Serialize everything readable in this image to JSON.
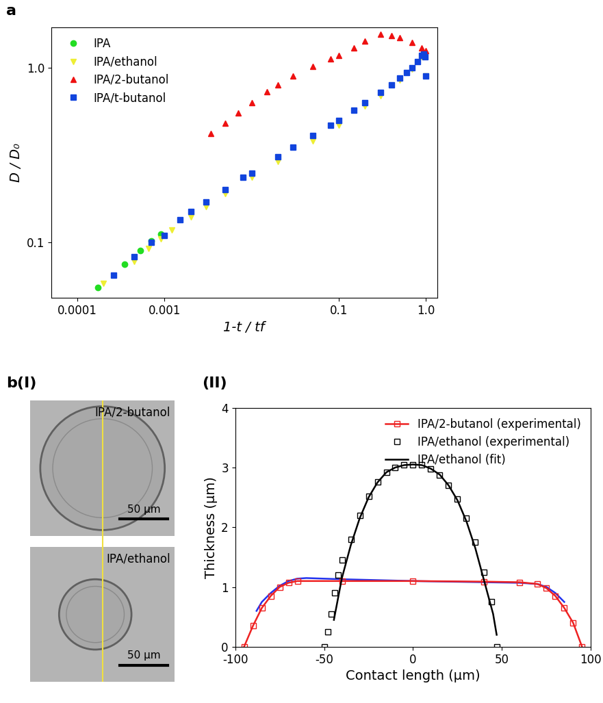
{
  "chart_data": [
    {
      "type": "scatter",
      "title": "a",
      "x_label": "1-t / tf",
      "y_label": "D / D₀",
      "log": true,
      "legend": "upper left",
      "xlim": [
        5e-05,
        1.35
      ],
      "ylim": [
        0.048,
        1.7
      ],
      "xticks": [
        0.0001,
        0.001,
        0.1,
        {
          "value": 1,
          "label": "1.0"
        }
      ],
      "yticks": [
        0.1,
        {
          "value": 1,
          "label": "1.0"
        }
      ],
      "series": [
        {
          "name": "IPA",
          "color": "#22dd22",
          "marker": "circle",
          "x": [
            0.00017,
            0.00035,
            0.00053,
            0.0007,
            0.0009
          ],
          "values": [
            0.055,
            0.075,
            0.09,
            0.102,
            0.112
          ]
        },
        {
          "name": "IPA/ethanol",
          "color": "#eeee33",
          "marker": "triangle_down",
          "x": [
            0.0002,
            0.00045,
            0.00065,
            0.0009,
            0.0012,
            0.002,
            0.003,
            0.005,
            0.01,
            0.02,
            0.05,
            0.1,
            0.2,
            0.3,
            0.5,
            0.7,
            0.9,
            0.95,
            1.0
          ],
          "values": [
            0.058,
            0.078,
            0.092,
            0.105,
            0.118,
            0.14,
            0.16,
            0.19,
            0.235,
            0.29,
            0.38,
            0.47,
            0.6,
            0.69,
            0.85,
            0.98,
            1.15,
            1.2,
            0.9
          ]
        },
        {
          "name": "IPA/2-butanol",
          "color": "#ee1111",
          "marker": "triangle_up",
          "x": [
            0.0034,
            0.005,
            0.007,
            0.01,
            0.015,
            0.02,
            0.03,
            0.05,
            0.08,
            0.1,
            0.15,
            0.2,
            0.3,
            0.4,
            0.5,
            0.7,
            0.9,
            1.0
          ],
          "values": [
            0.42,
            0.48,
            0.55,
            0.63,
            0.73,
            0.8,
            0.9,
            1.02,
            1.12,
            1.17,
            1.3,
            1.42,
            1.55,
            1.52,
            1.48,
            1.4,
            1.3,
            1.25
          ]
        },
        {
          "name": "IPA/t-butanol",
          "color": "#1144dd",
          "marker": "square",
          "x": [
            0.00026,
            0.00045,
            0.0007,
            0.001,
            0.0015,
            0.002,
            0.003,
            0.005,
            0.008,
            0.01,
            0.02,
            0.03,
            0.05,
            0.08,
            0.1,
            0.15,
            0.2,
            0.3,
            0.4,
            0.5,
            0.6,
            0.7,
            0.8,
            0.9,
            0.95,
            0.98,
            1.0
          ],
          "values": [
            0.065,
            0.083,
            0.1,
            0.11,
            0.135,
            0.15,
            0.17,
            0.2,
            0.235,
            0.25,
            0.31,
            0.35,
            0.41,
            0.47,
            0.5,
            0.57,
            0.63,
            0.72,
            0.8,
            0.87,
            0.94,
            1.0,
            1.08,
            1.17,
            1.2,
            1.15,
            0.9
          ]
        }
      ]
    },
    {
      "type": "image",
      "title": "b(I)",
      "panels": [
        {
          "label": "IPA/2-butanol",
          "scale_bar": "50 µm"
        },
        {
          "label": "IPA/ethanol",
          "scale_bar": "50 µm"
        }
      ]
    },
    {
      "type": "line",
      "title": "(II)",
      "x_label": "Contact length (µm)",
      "y_label": "Thickness (µm)",
      "legend": "upper right",
      "xlim": [
        -100,
        100
      ],
      "ylim": [
        0,
        4
      ],
      "xticks": [
        -100,
        -50,
        0,
        50,
        100
      ],
      "yticks": [
        0,
        1,
        2,
        3,
        4
      ],
      "series": [
        {
          "color": "#2233ee",
          "type": "line",
          "line_style": "solid",
          "x": [
            -88,
            -85,
            -80,
            -75,
            -70,
            -65,
            -60,
            -40,
            0,
            40,
            60,
            70,
            75,
            80,
            85
          ],
          "values": [
            0.6,
            0.75,
            0.9,
            1.02,
            1.1,
            1.14,
            1.15,
            1.13,
            1.1,
            1.08,
            1.07,
            1.05,
            1.0,
            0.9,
            0.75
          ]
        },
        {
          "name": "IPA/2-butanol (experimental)",
          "color": "#ee2222",
          "type": "line",
          "marker": "open_square",
          "line_style": "solid",
          "x": [
            -95,
            -90,
            -85,
            -80,
            -75,
            -70,
            -65,
            -40,
            0,
            40,
            60,
            70,
            75,
            80,
            85,
            90,
            95
          ],
          "values": [
            0,
            0.35,
            0.65,
            0.85,
            1.0,
            1.07,
            1.1,
            1.1,
            1.1,
            1.09,
            1.08,
            1.05,
            0.98,
            0.85,
            0.65,
            0.4,
            0
          ]
        },
        {
          "name": "IPA/ethanol (experimental)",
          "color": "#000000",
          "type": "scatter",
          "marker": "open_square",
          "x": [
            -50,
            -48,
            -46,
            -44,
            -42,
            -40,
            -35,
            -30,
            -25,
            -20,
            -15,
            -10,
            -5,
            0,
            5,
            10,
            15,
            20,
            25,
            30,
            35,
            40,
            44,
            47
          ],
          "values": [
            0,
            0.25,
            0.55,
            0.9,
            1.2,
            1.45,
            1.8,
            2.2,
            2.52,
            2.76,
            2.92,
            3.0,
            3.04,
            3.05,
            3.04,
            2.98,
            2.87,
            2.7,
            2.47,
            2.15,
            1.75,
            1.25,
            0.75,
            0
          ]
        },
        {
          "name": "IPA/ethanol (fit)",
          "color": "#000000",
          "type": "line",
          "line_style": "solid",
          "x": [
            -44.5,
            -40,
            -35,
            -30,
            -25,
            -20,
            -15,
            -10,
            -5,
            0,
            5,
            10,
            15,
            20,
            25,
            30,
            35,
            40,
            45,
            47
          ],
          "values": [
            0.45,
            1.15,
            1.7,
            2.15,
            2.5,
            2.75,
            2.92,
            3.0,
            3.04,
            3.05,
            3.04,
            2.98,
            2.88,
            2.7,
            2.45,
            2.1,
            1.65,
            1.1,
            0.55,
            0.2
          ]
        }
      ]
    }
  ]
}
